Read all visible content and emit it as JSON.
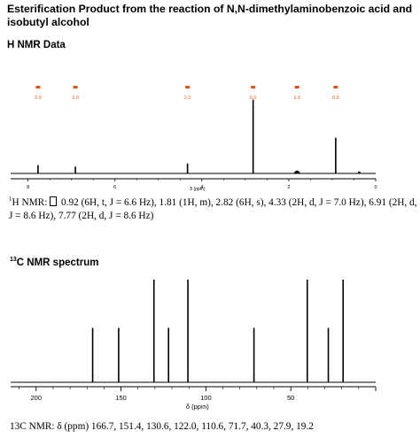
{
  "title": "Esterification Product from the reaction of N,N-dimethylaminobenzoic acid and isobutyl alcohol",
  "h_section": {
    "heading": "H NMR Data",
    "caption_sup": "1",
    "caption_text": "H NMR: \u0000 0.92 (6H, t, J = 6.6 Hz), 1.81 (1H, m), 2.82 (6H, s), 4.33 (2H, d, J = 7.0 Hz), 6.91 (2H, d, J = 8.6 Hz), 7.77 (2H, d, J = 8.6 Hz)"
  },
  "c_section": {
    "heading_sup": "13",
    "heading": "C NMR spectrum",
    "caption": "13C NMR: δ (ppm) 166.7, 151.4, 130.6, 122.0, 110.6, 71.7, 40.3, 27.9, 19.2"
  },
  "accent_color": "#e8501a",
  "chart_data": [
    {
      "type": "nmr-stick",
      "nucleus": "1H",
      "xlabel": "δ (ppm)",
      "xlim": [
        8.4,
        0
      ],
      "x_reversed": true,
      "tick_labels": [
        "8",
        "6",
        "4",
        "2",
        "0"
      ],
      "peaks": [
        {
          "ppm": 7.77,
          "intensity": 0.11
        },
        {
          "ppm": 6.91,
          "intensity": 0.09
        },
        {
          "ppm": 4.33,
          "intensity": 0.13
        },
        {
          "ppm": 2.82,
          "intensity": 0.97
        },
        {
          "ppm": 1.81,
          "intensity": 0.03
        },
        {
          "ppm": 0.92,
          "intensity": 0.47
        }
      ],
      "integrations": [
        {
          "ppm": 7.77,
          "label": "2.0"
        },
        {
          "ppm": 6.91,
          "label": "2.0"
        },
        {
          "ppm": 4.33,
          "label": "2.0"
        },
        {
          "ppm": 2.82,
          "label": "6.0"
        },
        {
          "ppm": 1.81,
          "label": "1.0"
        },
        {
          "ppm": 0.92,
          "label": "6.0"
        }
      ]
    },
    {
      "type": "nmr-stick",
      "nucleus": "13C",
      "xlabel": "δ (ppm)",
      "xlim": [
        215,
        0
      ],
      "x_reversed": true,
      "tick_labels": [
        "200",
        "150",
        "100",
        "50"
      ],
      "peaks": [
        {
          "ppm": 166.7,
          "intensity": 0.53
        },
        {
          "ppm": 151.4,
          "intensity": 0.53
        },
        {
          "ppm": 130.6,
          "intensity": 1.0
        },
        {
          "ppm": 122.0,
          "intensity": 0.53
        },
        {
          "ppm": 110.6,
          "intensity": 1.0
        },
        {
          "ppm": 71.7,
          "intensity": 0.53
        },
        {
          "ppm": 40.3,
          "intensity": 1.0
        },
        {
          "ppm": 27.9,
          "intensity": 0.53
        },
        {
          "ppm": 19.2,
          "intensity": 1.0
        }
      ]
    }
  ]
}
